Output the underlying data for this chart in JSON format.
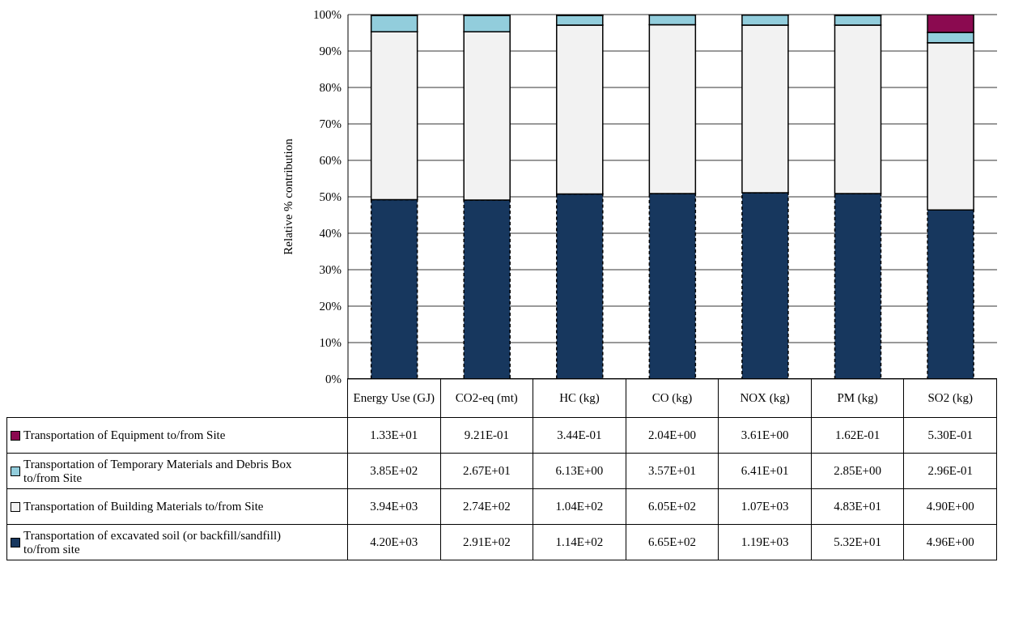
{
  "chart_data": [
    {
      "type": "bar",
      "stacked": true,
      "ylabel": "Relative % contribution",
      "categories": [
        "Energy Use (GJ)",
        "CO2-eq (mt)",
        "HC (kg)",
        "CO (kg)",
        "NOX (kg)",
        "PM (kg)",
        "SO2 (kg)"
      ],
      "ylim": [
        0,
        100
      ],
      "yticks": [
        {
          "value": 0,
          "label": "0%"
        },
        {
          "value": 10,
          "label": "10%"
        },
        {
          "value": 20,
          "label": "20%"
        },
        {
          "value": 30,
          "label": "30%"
        },
        {
          "value": 40,
          "label": "40%"
        },
        {
          "value": 50,
          "label": "50%"
        },
        {
          "value": 60,
          "label": "60%"
        },
        {
          "value": 70,
          "label": "70%"
        },
        {
          "value": 80,
          "label": "80%"
        },
        {
          "value": 90,
          "label": "90%"
        },
        {
          "value": 100,
          "label": "100%"
        }
      ],
      "grid": "y",
      "legend": "bottom left",
      "series": [
        {
          "name": "Transportation of excavated soil (or backfill/sandfill) to/from site",
          "color": "#17375e",
          "line_style": "dashed",
          "values": [
            49.2,
            49.1,
            50.8,
            50.9,
            51.1,
            50.9,
            46.4
          ]
        },
        {
          "name": "Transportation of Building Materials to/from Site",
          "color": "#f2f2f2",
          "line_style": "solid",
          "values": [
            46.1,
            46.2,
            46.3,
            46.3,
            46.0,
            46.2,
            45.9
          ]
        },
        {
          "name": "Transportation of Temporary Materials and Debris Box to/from Site",
          "color": "#92cddc",
          "line_style": "solid",
          "values": [
            4.5,
            4.5,
            2.7,
            2.7,
            2.8,
            2.7,
            2.8
          ]
        },
        {
          "name": "Transportation of Equipment to/from Site",
          "color": "#8b0a50",
          "line_style": "solid",
          "values": [
            0.2,
            0.2,
            0.2,
            0.2,
            0.2,
            0.2,
            5.0
          ]
        }
      ]
    },
    {
      "type": "other",
      "cell_labels": [
        [
          "1.33E+01",
          "9.21E-01",
          "3.44E-01",
          "2.04E+00",
          "3.61E+00",
          "1.62E-01",
          "5.30E-01"
        ],
        [
          "3.85E+02",
          "2.67E+01",
          "6.13E+00",
          "3.57E+01",
          "6.41E+01",
          "2.85E+00",
          "2.96E-01"
        ],
        [
          "3.94E+03",
          "2.74E+02",
          "1.04E+02",
          "6.05E+02",
          "1.07E+03",
          "4.83E+01",
          "4.90E+00"
        ],
        [
          "4.20E+03",
          "2.91E+02",
          "1.14E+02",
          "6.65E+02",
          "1.19E+03",
          "5.32E+01",
          "4.96E+00"
        ]
      ]
    }
  ]
}
